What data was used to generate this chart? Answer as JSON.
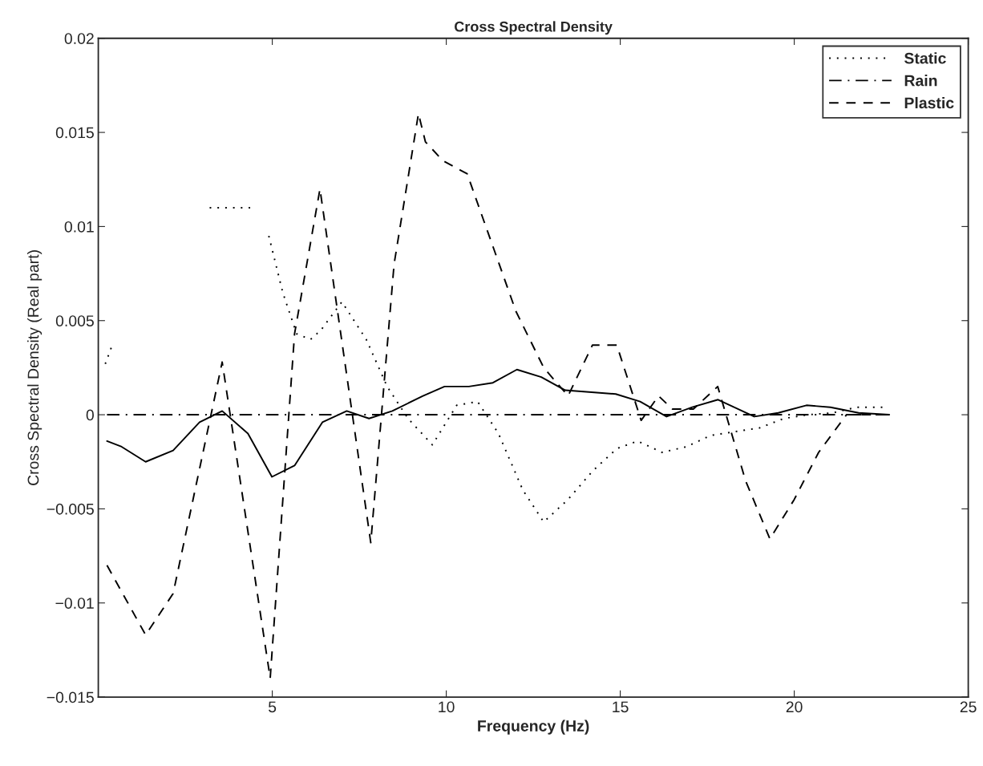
{
  "chart_data": {
    "type": "line",
    "title": "Cross Spectral Density",
    "xlabel": "Frequency (Hz)",
    "ylabel": "Cross Spectral Density (Real part)",
    "xlim": [
      0,
      25
    ],
    "xticks": [
      5,
      10,
      15,
      20,
      25
    ],
    "ylim": [
      -0.015,
      0.02
    ],
    "yticks": [
      {
        "value": -0.015,
        "label": "−0.015"
      },
      {
        "value": -0.01,
        "label": "−0.01"
      },
      {
        "value": -0.005,
        "label": "−0.005"
      },
      0,
      0.005,
      0.01,
      0.015,
      0.02
    ],
    "grid": false,
    "legend": "top right",
    "marker": "none",
    "series": [
      {
        "name": "Static",
        "color": "#000000",
        "line_style": "dotted",
        "x": [
          0.2,
          0.4,
          1.5,
          3.2,
          3.8,
          4.4,
          4.6,
          4.9,
          5.3,
          5.7,
          6.1,
          6.4,
          7.0,
          7.7,
          8.3,
          8.9,
          9.6,
          10.3,
          10.9,
          11.5,
          12.2,
          12.8,
          13.5,
          14.2,
          14.9,
          15.5,
          16.2,
          16.9,
          17.6,
          18.3,
          19.0,
          19.7,
          20.4,
          21.1,
          21.8,
          22.6
        ],
        "values": [
          0.0027,
          0.0037,
          null,
          0.011,
          0.011,
          0.011,
          null,
          0.0095,
          0.0065,
          0.0043,
          0.004,
          0.0045,
          0.006,
          0.004,
          0.0015,
          -0.0002,
          -0.0016,
          0.0005,
          0.0007,
          -0.001,
          -0.004,
          -0.0057,
          -0.0045,
          -0.003,
          -0.0018,
          -0.0014,
          -0.002,
          -0.0017,
          -0.0011,
          -0.0009,
          -0.0007,
          -0.0002,
          0.0,
          0.0001,
          0.0004,
          0.0004
        ]
      },
      {
        "name": "Rain",
        "color": "#000000",
        "line_style": "dashdot",
        "x": [
          0.25,
          22.73
        ],
        "values": [
          0.0,
          0.0
        ]
      },
      {
        "name": "Plastic",
        "color": "#000000",
        "line_style": "dashed",
        "x": [
          0.25,
          1.36,
          2.15,
          3.56,
          4.94,
          5.64,
          6.37,
          7.83,
          8.5,
          9.2,
          9.4,
          9.9,
          10.6,
          12.0,
          12.8,
          13.5,
          14.2,
          14.9,
          15.6,
          16.1,
          16.5,
          17.1,
          17.8,
          18.6,
          19.3,
          20.0,
          20.7,
          21.5,
          22.6
        ],
        "values": [
          -0.008,
          -0.0117,
          -0.0095,
          0.0028,
          -0.014,
          0.0043,
          0.012,
          -0.0068,
          0.008,
          0.016,
          0.0145,
          0.0135,
          0.0128,
          0.0055,
          0.0025,
          0.001,
          0.0037,
          0.0037,
          -0.0003,
          0.001,
          0.0003,
          0.0003,
          0.0015,
          -0.0035,
          -0.0066,
          -0.0045,
          -0.002,
          0.0,
          0.0
        ]
      },
      {
        "color": "#000000",
        "line_style": "solid",
        "x": [
          0.25,
          0.67,
          1.36,
          2.15,
          2.91,
          3.56,
          4.3,
          4.99,
          5.64,
          6.44,
          7.14,
          7.78,
          8.45,
          9.33,
          9.95,
          10.65,
          11.34,
          12.03,
          12.73,
          13.42,
          14.18,
          14.87,
          15.57,
          16.33,
          17.07,
          17.81,
          18.85,
          19.54,
          20.35,
          21.04,
          21.85,
          22.73
        ],
        "values": [
          -0.0014,
          -0.0017,
          -0.0025,
          -0.0019,
          -0.0004,
          0.0002,
          -0.001,
          -0.0033,
          -0.0027,
          -0.0004,
          0.0002,
          -0.0002,
          0.0002,
          0.001,
          0.0015,
          0.0015,
          0.0017,
          0.0024,
          0.002,
          0.0013,
          0.0012,
          0.0011,
          0.0007,
          -0.0001,
          0.0004,
          0.0008,
          -0.0001,
          0.0001,
          0.0005,
          0.0004,
          0.0001,
          0.0
        ]
      }
    ]
  }
}
